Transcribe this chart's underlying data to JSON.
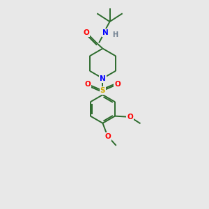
{
  "background_color": "#e8e8e8",
  "bond_color": "#2d6b2d",
  "atom_colors": {
    "O": "#ff0000",
    "N": "#0000ff",
    "S": "#ccaa00",
    "H": "#708090",
    "C": "#2d6b2d"
  },
  "figsize": [
    3.0,
    3.0
  ],
  "dpi": 100
}
